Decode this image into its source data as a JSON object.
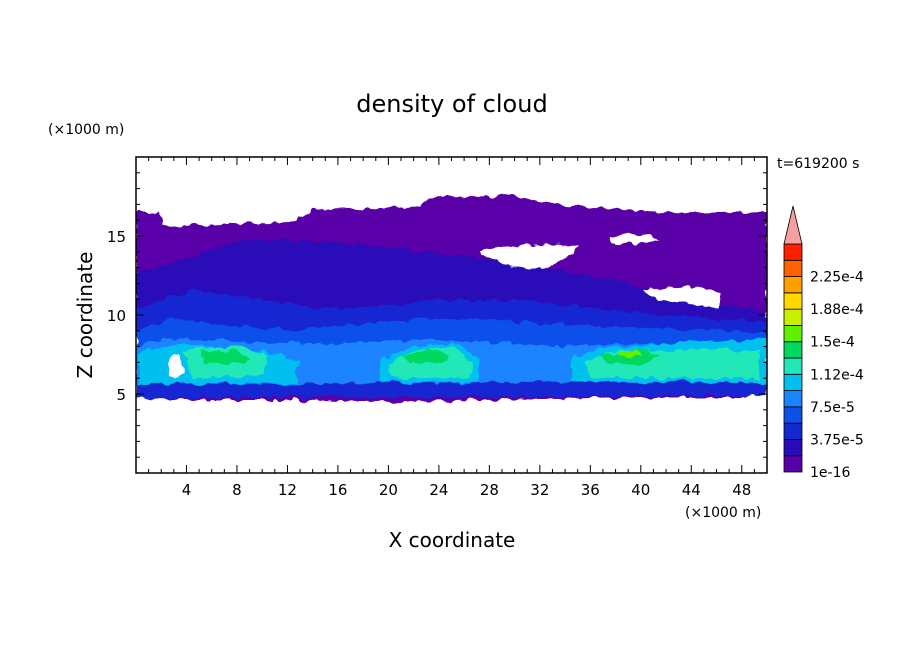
{
  "chart_data": {
    "type": "heatmap",
    "title": "density of cloud",
    "xlabel": "X coordinate",
    "ylabel": "Z coordinate",
    "x_unit": "(×1000 m)",
    "y_unit": "(×1000 m)",
    "time_label": "t=619200 s",
    "xlim": [
      0,
      50
    ],
    "ylim": [
      0,
      20
    ],
    "xticks": [
      4,
      8,
      12,
      16,
      20,
      24,
      28,
      32,
      36,
      40,
      44,
      48
    ],
    "yticks": [
      5,
      10,
      15
    ],
    "legend_position": "right",
    "colorbar_levels": [
      1e-16,
      1.875e-05,
      3.75e-05,
      5.625e-05,
      7.5e-05,
      9.375e-05,
      0.0001125,
      0.00013125,
      0.00015,
      0.00016875,
      0.0001875,
      0.00020625,
      0.000225,
      0.00024375
    ],
    "colorbar_labels": [
      "1e-16",
      "3.75e-5",
      "7.5e-5",
      "1.12e-4",
      "1.5e-4",
      "1.88e-4",
      "2.25e-4"
    ],
    "colorbar_colors": [
      "#5a00a8",
      "#2a0ab8",
      "#1428d2",
      "#1050ea",
      "#1a84ff",
      "#00c0f0",
      "#20e8b8",
      "#00d860",
      "#60f000",
      "#c8f000",
      "#ffd800",
      "#ffa000",
      "#ff6000",
      "#ff2000"
    ],
    "overflow_color": "#f5a0a0"
  }
}
